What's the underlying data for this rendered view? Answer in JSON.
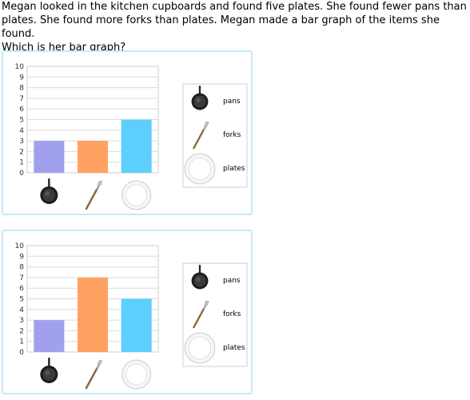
{
  "question": "Megan looked in the kitchen cupboards and found five plates. She found fewer pans than\nplates. She found more forks than plates. Megan made a bar graph of the items she found.\nWhich is her bar graph?",
  "colors": {
    "pans": "#a0a0ee",
    "forks": "#ffa160",
    "plates": "#5dcffc",
    "border": "#c3ebf5",
    "grid": "#dcdcdc"
  },
  "legend": [
    {
      "icon": "pan-icon",
      "label": "pans"
    },
    {
      "icon": "fork-icon",
      "label": "forks"
    },
    {
      "icon": "plate-icon",
      "label": "plates"
    }
  ],
  "chart_data": [
    {
      "type": "bar",
      "categories": [
        "pans",
        "forks",
        "plates"
      ],
      "values": [
        3,
        3,
        5
      ],
      "ylim": [
        0,
        10
      ],
      "yticks": [
        0,
        1,
        2,
        3,
        4,
        5,
        6,
        7,
        8,
        9,
        10
      ],
      "grid": true,
      "legend_position": "right"
    },
    {
      "type": "bar",
      "categories": [
        "pans",
        "forks",
        "plates"
      ],
      "values": [
        3,
        7,
        5
      ],
      "ylim": [
        0,
        10
      ],
      "yticks": [
        0,
        1,
        2,
        3,
        4,
        5,
        6,
        7,
        8,
        9,
        10
      ],
      "grid": true,
      "legend_position": "right"
    }
  ]
}
